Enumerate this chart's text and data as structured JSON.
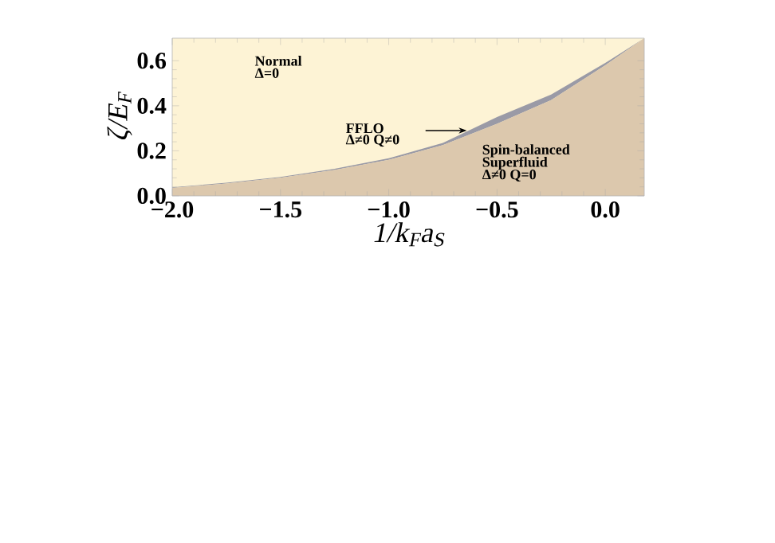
{
  "chart_data": {
    "type": "area",
    "stacked": true,
    "xlabel": "1/k$_{F}$a$_{S}$",
    "ylabel": "ζ/E$_{F}$",
    "x": [
      -2.0,
      -1.75,
      -1.5,
      -1.25,
      -1.0,
      -0.75,
      -0.5,
      -0.25,
      0.0,
      0.18
    ],
    "series": [
      {
        "color": "#dcc8ad",
        "values": [
          0.035,
          0.055,
          0.08,
          0.115,
          0.16,
          0.225,
          0.32,
          0.425,
          0.58,
          0.7
        ]
      },
      {
        "color": "#9a9aa6",
        "values": [
          0.003,
          0.003,
          0.004,
          0.005,
          0.007,
          0.01,
          0.03,
          0.025,
          0.01,
          0.0
        ]
      }
    ],
    "xlim": [
      -2.0,
      0.18
    ],
    "ylim": [
      0,
      0.7
    ],
    "xticks": [
      {
        "value": -2.0,
        "label": "−2.0"
      },
      {
        "value": -1.5,
        "label": "−1.5"
      },
      {
        "value": -1.0,
        "label": "−1.0"
      },
      {
        "value": -0.5,
        "label": "−0.5"
      },
      {
        "value": 0.0,
        "label": "0.0"
      }
    ],
    "yticks": [
      {
        "value": 0.0,
        "label": "0.0"
      },
      {
        "value": 0.2,
        "label": "0.2"
      },
      {
        "value": 0.4,
        "label": "0.4"
      },
      {
        "value": 0.6,
        "label": "0.6"
      }
    ],
    "annotations": [
      "Normal",
      "Δ=0",
      "FFLO",
      "Δ≠0 Q≠0",
      "Spin-balanced",
      "Superfluid",
      "Δ≠0 Q=0"
    ]
  }
}
